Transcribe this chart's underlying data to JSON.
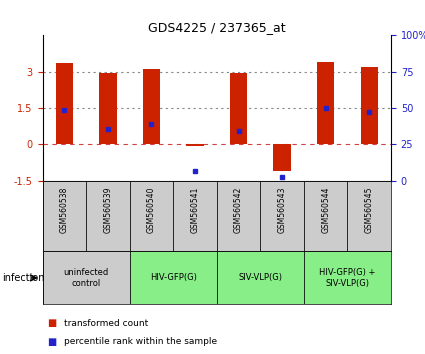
{
  "title": "GDS4225 / 237365_at",
  "samples": [
    "GSM560538",
    "GSM560539",
    "GSM560540",
    "GSM560541",
    "GSM560542",
    "GSM560543",
    "GSM560544",
    "GSM560545"
  ],
  "red_bars": [
    3.35,
    2.95,
    3.1,
    -0.08,
    2.95,
    -1.1,
    3.4,
    3.2
  ],
  "blue_dots": [
    1.4,
    0.65,
    0.85,
    -1.1,
    0.55,
    -1.35,
    1.5,
    1.35
  ],
  "ylim": [
    -1.5,
    4.5
  ],
  "yticks_left": [
    -1.5,
    0,
    1.5,
    3
  ],
  "hlines": [
    0,
    1.5,
    3.0
  ],
  "hline_styles": [
    "dashed",
    "dotted",
    "dotted"
  ],
  "hline_colors": [
    "#cc4444",
    "#888888",
    "#888888"
  ],
  "groups": [
    {
      "label": "uninfected\ncontrol",
      "start": 0,
      "end": 2,
      "color": "#cccccc"
    },
    {
      "label": "HIV-GFP(G)",
      "start": 2,
      "end": 4,
      "color": "#88ee88"
    },
    {
      "label": "SIV-VLP(G)",
      "start": 4,
      "end": 6,
      "color": "#88ee88"
    },
    {
      "label": "HIV-GFP(G) +\nSIV-VLP(G)",
      "start": 6,
      "end": 8,
      "color": "#88ee88"
    }
  ],
  "infection_label": "infection",
  "legend_red": "transformed count",
  "legend_blue": "percentile rank within the sample",
  "bar_color": "#cc2200",
  "dot_color": "#2222cc",
  "bar_width": 0.4
}
